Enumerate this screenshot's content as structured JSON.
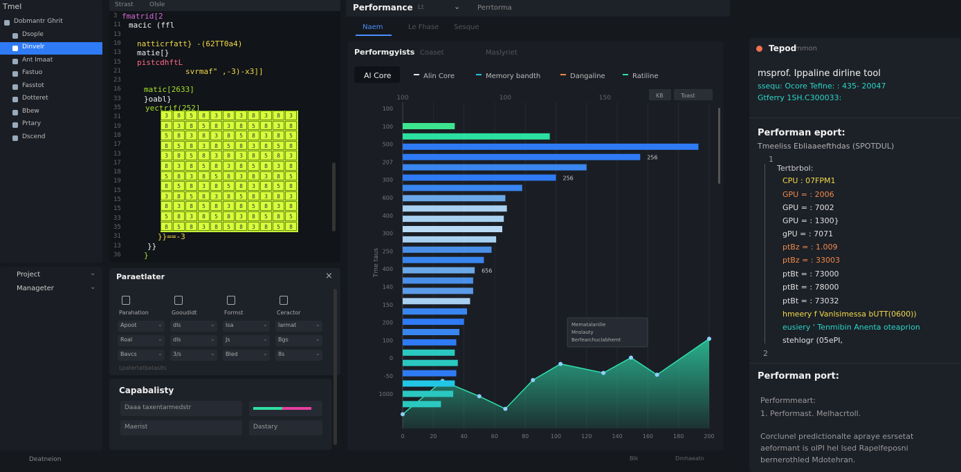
{
  "sidebar": {
    "title": "Tmel",
    "items": [
      "Dobmantr Ghrit",
      "Dsople",
      "Dinvelr",
      "Ant Imaat",
      "Fastuo",
      "Fasstot",
      "Dotteret",
      "Bbew",
      "Prtary",
      "Dscend"
    ],
    "selected": 2,
    "bottom": [
      "Project",
      "Manageter"
    ],
    "footer": "Deatneion"
  },
  "editor": {
    "tabs": [
      "Strast",
      "Olsle"
    ],
    "numbers": [
      "3",
      "11",
      "13",
      "10",
      "13",
      "15",
      "21",
      "23",
      "16",
      "33",
      "35",
      "31",
      "19",
      "18",
      "17",
      "13",
      "17",
      "18",
      "19",
      "15",
      "15",
      "15",
      "33",
      "35",
      "31",
      "13",
      "36"
    ],
    "code": [
      {
        "line": 0,
        "text": "fmatrid[2",
        "color": "#d66bd6"
      },
      {
        "line": 1,
        "text": "macic (ffl",
        "color": "#f0f0f0"
      },
      {
        "line": 3,
        "text": "natticrfatt} -(62TT0a4)",
        "color": "#f3d94a"
      },
      {
        "line": 4,
        "text": "matie[}",
        "color": "#f0f0f0"
      },
      {
        "line": 5,
        "text": "pistcdhftL",
        "color": "#ff6b8a"
      },
      {
        "line": 6,
        "text": "svrmaf\" ,-3)-x3]]",
        "color": "#f3d94a"
      },
      {
        "line": 8,
        "text": "matic[2633]",
        "color": "#a6e22e"
      },
      {
        "line": 9,
        "text": "}oabl}",
        "color": "#f0f0f0"
      },
      {
        "line": 10,
        "text": "yectrif(252]",
        "color": "#a6e22e"
      },
      {
        "line": 24,
        "text": "}}==-3",
        "color": "#f3d94a"
      },
      {
        "line": 25,
        "text": "}}",
        "color": "#f0f0f0"
      },
      {
        "line": 26,
        "text": "}",
        "color": "#a6e22e"
      }
    ],
    "matrix": [
      [
        "3",
        "8",
        "5",
        "8",
        "3",
        "8",
        "3",
        "8",
        "3",
        "8",
        "3"
      ],
      [
        "8",
        "3",
        "8",
        "5",
        "8",
        "3",
        "8",
        "5",
        "8",
        "3",
        "8"
      ],
      [
        "5",
        "8",
        "3",
        "8",
        "3",
        "8",
        "5",
        "8",
        "3",
        "8",
        "5"
      ],
      [
        "8",
        "5",
        "8",
        "3",
        "8",
        "5",
        "8",
        "3",
        "8",
        "5",
        "8"
      ],
      [
        "3",
        "8",
        "5",
        "8",
        "3",
        "8",
        "3",
        "8",
        "5",
        "8",
        "3"
      ],
      [
        "8",
        "3",
        "8",
        "5",
        "8",
        "3",
        "8",
        "5",
        "8",
        "3",
        "8"
      ],
      [
        "5",
        "8",
        "3",
        "8",
        "5",
        "8",
        "3",
        "8",
        "3",
        "8",
        "5"
      ],
      [
        "8",
        "5",
        "8",
        "3",
        "8",
        "5",
        "8",
        "3",
        "8",
        "5",
        "8"
      ],
      [
        "3",
        "8",
        "5",
        "8",
        "3",
        "8",
        "5",
        "8",
        "3",
        "8",
        "3"
      ],
      [
        "8",
        "3",
        "8",
        "5",
        "8",
        "3",
        "8",
        "5",
        "8",
        "3",
        "8"
      ],
      [
        "5",
        "8",
        "3",
        "8",
        "5",
        "8",
        "3",
        "8",
        "5",
        "8",
        "5"
      ],
      [
        "8",
        "5",
        "8",
        "3",
        "8",
        "5",
        "8",
        "3",
        "8",
        "5",
        "8"
      ]
    ]
  },
  "parameters": {
    "title": "Paraetlater",
    "columns": [
      "Parahation",
      "Gooudidt",
      "Formst",
      "Ceractor"
    ],
    "rows": [
      [
        "Apoot",
        "dls",
        "Isa",
        "Iarmat"
      ],
      [
        "Roal",
        "dls",
        "Js",
        "Bgs"
      ],
      [
        "Bavcs",
        "3/s",
        "Bled",
        "8s"
      ]
    ],
    "footer": "Lpatertatbatasits"
  },
  "capability": {
    "title": "Capabalisty",
    "fields": [
      "Daaa taxentarmedstr",
      "Maerist",
      "Dastary"
    ]
  },
  "toolbar": {
    "dropdown": "Performance",
    "dropdown_tag": "Lt",
    "crumb": "Perrtorma",
    "tabs": [
      "Naem",
      "Le Fhase",
      "Sesque"
    ],
    "active": 0
  },
  "chart_panel": {
    "tabs": [
      "Performgyists",
      "Coaset",
      "Maslyriet"
    ],
    "legend_box": "Al Core",
    "legend": [
      {
        "name": "Alin Core",
        "color": "#e8e8e8"
      },
      {
        "name": "Memory bandth",
        "color": "#22c7e6"
      },
      {
        "name": "Dangaline",
        "color": "#f08a4b"
      },
      {
        "name": "Ratiline",
        "color": "#2fe0a0"
      }
    ],
    "buttons": [
      "KB",
      "Toast"
    ],
    "top_labels": [
      {
        "value": 0,
        "label": "100"
      },
      {
        "value": 67,
        "label": "100"
      },
      {
        "value": 132,
        "label": "150"
      }
    ],
    "row_labels": [
      "100",
      "100",
      "500",
      "207",
      "300",
      "600",
      "400",
      "300",
      "250",
      "400",
      "140",
      "150",
      "200",
      "100",
      "0",
      "-50",
      "1000"
    ],
    "y_title": "Tme taus",
    "chart_data": {
      "type": "bar",
      "orientation": "horizontal",
      "values": [
        34,
        96,
        193,
        155,
        120,
        100,
        78,
        67,
        68,
        66,
        65,
        61,
        58,
        53,
        47,
        46,
        46,
        44,
        42,
        40,
        37,
        35,
        34,
        36,
        35,
        34,
        33,
        25
      ],
      "colors": [
        "#3ee58f",
        "#2be0a0",
        "#2f7bf5",
        "#2f7bf5",
        "#3a86f0",
        "#2f7bf5",
        "#3a86f0",
        "#6aa8e8",
        "#a8d0f0",
        "#a8d0f0",
        "#b8daf4",
        "#a8d0f0",
        "#4a90e8",
        "#3a86f0",
        "#6aa8e8",
        "#4a90e8",
        "#5b9be8",
        "#a8d0f0",
        "#3a86f0",
        "#2f7bf5",
        "#3a86f0",
        "#2f7bf5",
        "#2bc8c0",
        "#2bc8c0",
        "#2f7bf5",
        "#22c7e6",
        "#2bc8c0",
        "#2bc8c0"
      ],
      "xlim": [
        0,
        200
      ],
      "xticks": [
        0,
        20,
        40,
        60,
        80,
        100,
        120,
        140,
        160,
        180,
        200
      ],
      "grid": true,
      "annotations": [
        {
          "bar": 3,
          "text": "256"
        },
        {
          "bar": 5,
          "text": "256"
        },
        {
          "bar": 14,
          "text": "656"
        }
      ],
      "line": {
        "type": "area",
        "color": "#2fe0b0",
        "x": [
          0,
          26,
          50,
          67,
          85,
          103,
          131,
          149,
          166,
          200
        ],
        "values": [
          12,
          49,
          32,
          18,
          50,
          68,
          58,
          75,
          56,
          96
        ],
        "ylim": [
          0,
          100
        ]
      },
      "tooltip": [
        "Mematalanilie",
        "Mnslauty",
        "Berfearchuclabhemt"
      ]
    }
  },
  "report": {
    "title": "Tepod",
    "subtitle": "mmon",
    "lines": [
      {
        "text": "msprof. Ippaline dirline tool",
        "color": "#f2f2f2"
      },
      {
        "text": "ssequ: Ocore Tefine: : 435- 20047",
        "color": "#2ad6c8"
      },
      {
        "text": "Gtferry 1SH.C300033:",
        "color": "#2ad6c8"
      },
      {
        "text": "Performan eport:",
        "color": "#f2f2f2"
      },
      {
        "text": "Tmeeliss Ebliaaeefthdas (SPOTDUL)",
        "color": "#b0b0b0"
      },
      {
        "text": "1",
        "color": "#9a9a9a"
      },
      {
        "text": "Tertbrbol:",
        "color": "#d0d0d0"
      },
      {
        "text": "CPU : 07FPM1",
        "color": "#f3d94a"
      },
      {
        "text": "GPU = : 2006",
        "color": "#f08a4b"
      },
      {
        "text": "GPU = : 7002",
        "color": "#e0e0e0"
      },
      {
        "text": "GPU = : 1300}",
        "color": "#e0e0e0"
      },
      {
        "text": "gPU = : 7071",
        "color": "#e0e0e0"
      },
      {
        "text": "ptBz = : 1.009",
        "color": "#f08a4b"
      },
      {
        "text": "ptBz = : 33003",
        "color": "#f08a4b"
      },
      {
        "text": "ptBt = : 73000",
        "color": "#e0e0e0"
      },
      {
        "text": "ptBt = : 78000",
        "color": "#e0e0e0"
      },
      {
        "text": "ptBt = : 73032",
        "color": "#e0e0e0"
      },
      {
        "text": "hmeery f Vanlsimessa bUTT(0600))",
        "color": "#f3d94a"
      },
      {
        "text": "eusiery ' Tenmibin Anenta oteaprion",
        "color": "#2ad6c8"
      },
      {
        "text": "stehlogr (05ePI,",
        "color": "#e0e0e0"
      },
      {
        "text": "2",
        "color": "#9a9a9a"
      },
      {
        "text": "Performan port:",
        "color": "#f2f2f2"
      },
      {
        "text": "Performmeart:",
        "color": "#9a9a9a"
      },
      {
        "text": "1. Performast. Melhacrtoll.",
        "color": "#9a9a9a"
      },
      {
        "text": "Corclunel predictionalte apraye esrsetat",
        "color": "#9a9a9a"
      },
      {
        "text": "aeformant is oIPI hel lsed Rapelfeposni",
        "color": "#9a9a9a"
      },
      {
        "text": "bernerothled Mdotehran.",
        "color": "#9a9a9a"
      }
    ]
  },
  "status": {
    "right": [
      "Blk",
      "Dmhaeatn"
    ]
  }
}
